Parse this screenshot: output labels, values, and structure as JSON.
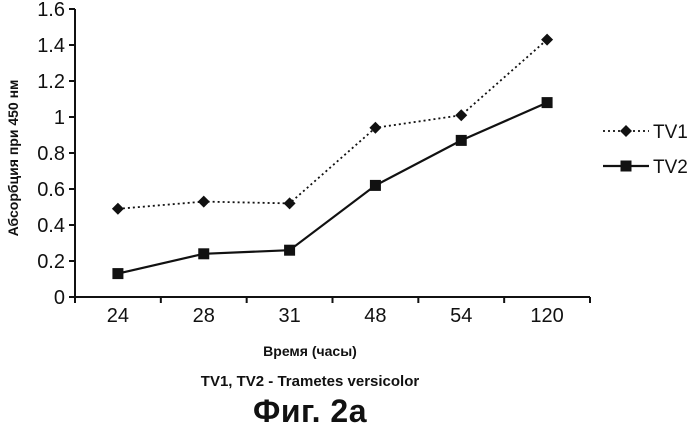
{
  "chart_data": {
    "type": "line",
    "categories": [
      "24",
      "28",
      "31",
      "48",
      "54",
      "120"
    ],
    "series": [
      {
        "name": "TV1",
        "values": [
          0.49,
          0.53,
          0.52,
          0.94,
          1.01,
          1.43
        ],
        "color": "#111111",
        "line_style": "dotted",
        "marker": "diamond"
      },
      {
        "name": "TV2",
        "values": [
          0.13,
          0.24,
          0.26,
          0.62,
          0.87,
          1.08
        ],
        "color": "#111111",
        "line_style": "solid",
        "marker": "square"
      }
    ],
    "ylim": [
      0,
      1.6
    ],
    "yticks": [
      "0",
      "0.2",
      "0.4",
      "0.6",
      "0.8",
      "1",
      "1.2",
      "1.4",
      "1.6"
    ],
    "ylabel": "Абсорбция при 450 нм",
    "xlabel": "Время (часы)",
    "grid": false,
    "legend_position": "right"
  },
  "caption": {
    "note": "TV1, TV2 - Trametes versicolor",
    "figure_label": "Фиг. 2а"
  }
}
